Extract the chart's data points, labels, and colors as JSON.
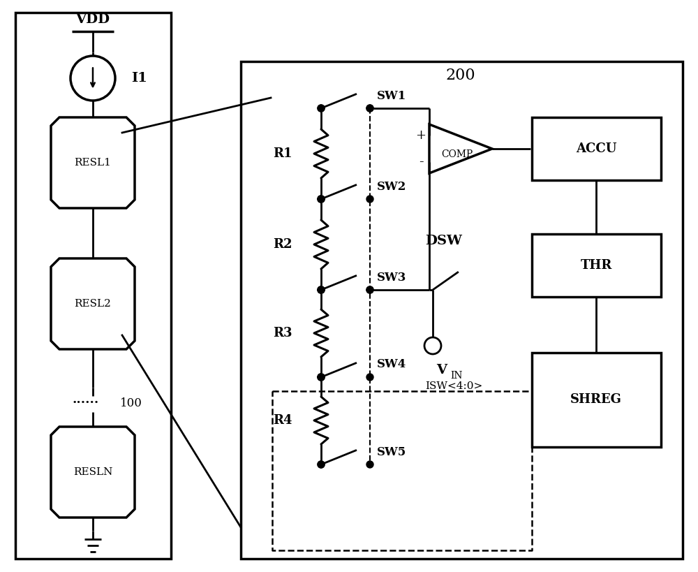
{
  "bg_color": "#ffffff",
  "fig_width": 10.0,
  "fig_height": 8.19,
  "dpi": 100,
  "vdd_label": "VDD",
  "i1_label": "I1",
  "resl_labels": [
    "RESL1",
    "RESL2",
    "RESLN"
  ],
  "dots_label": "......",
  "num100_label": "100",
  "r_labels": [
    "R1",
    "R2",
    "R3",
    "R4"
  ],
  "sw_labels": [
    "SW1",
    "SW2",
    "SW3",
    "SW4",
    "SW5"
  ],
  "num200_label": "200",
  "comp_label": "COMP",
  "accu_label": "ACCU",
  "thr_label": "THR",
  "shreg_label": "SHREG",
  "dsw_label": "DSW",
  "vin_label": "V",
  "vin_sub": "IN",
  "isw_label": "ISW<4:0>"
}
